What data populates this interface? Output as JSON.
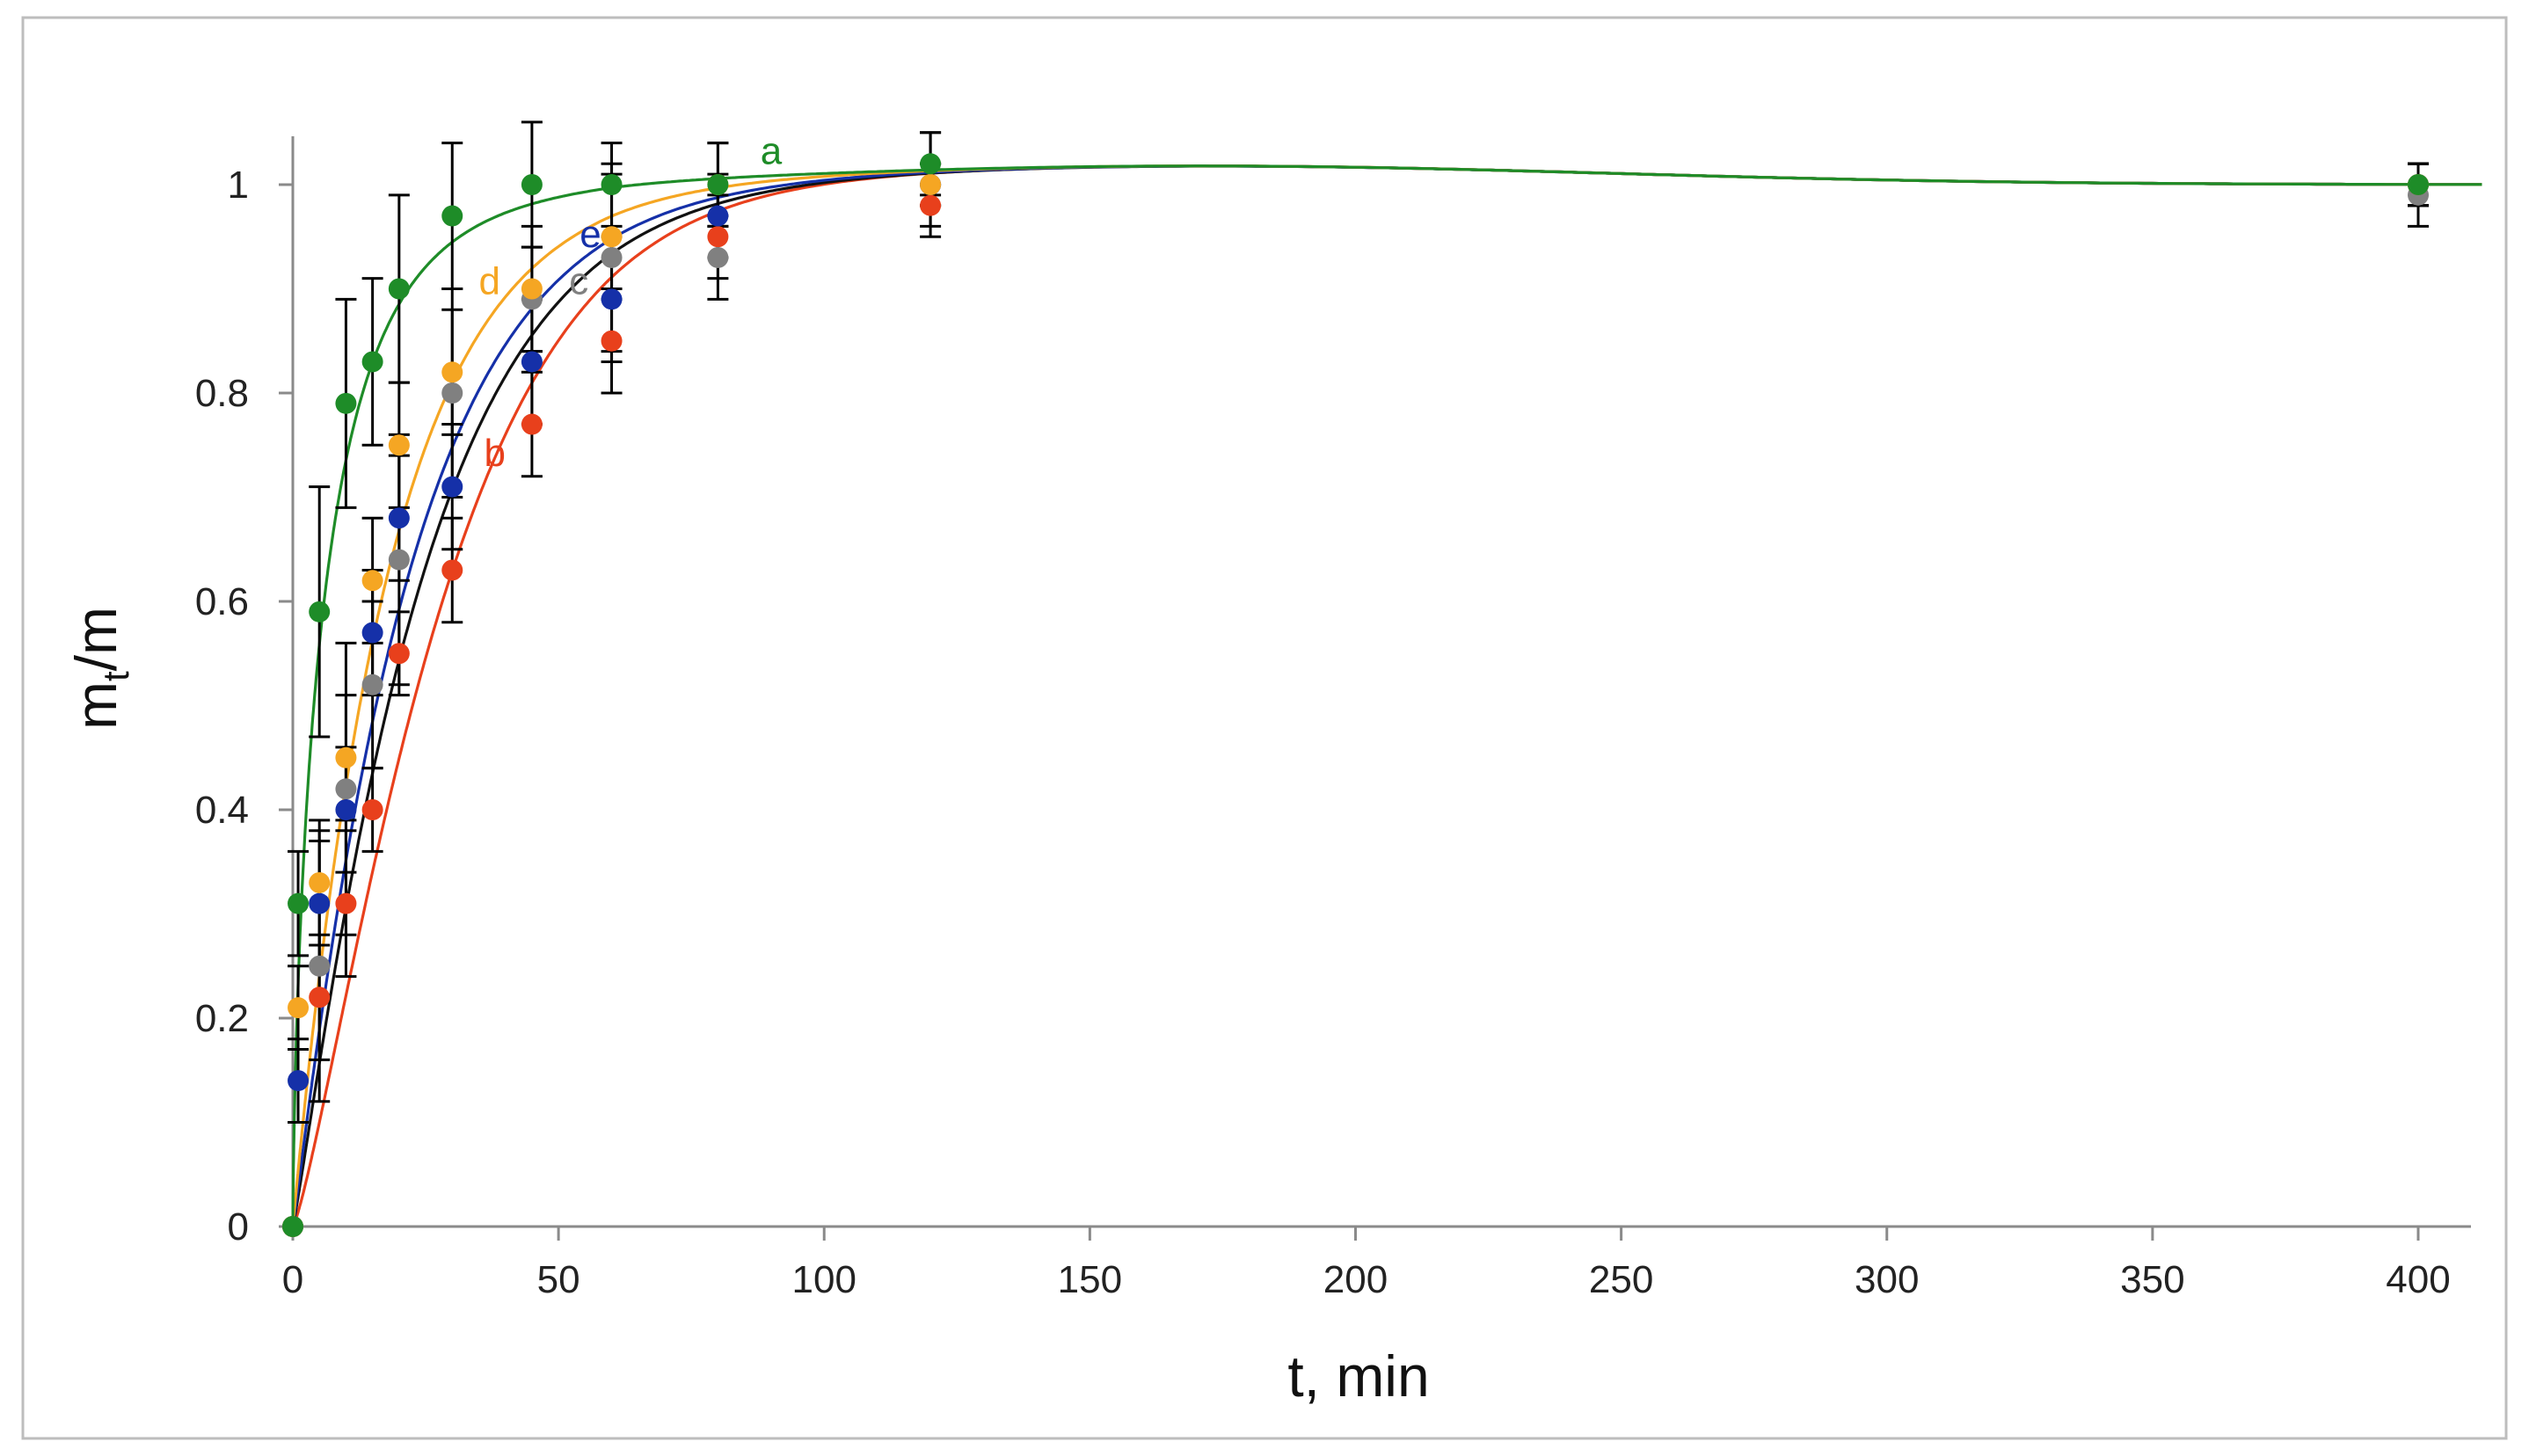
{
  "chart_data": {
    "type": "scatter",
    "xlabel": "t, min",
    "ylabel_main": "m",
    "ylabel_sub": "t",
    "ylabel_tail": "/m",
    "xlim": [
      0,
      400
    ],
    "ylim": [
      0,
      1
    ],
    "xticks": [
      "0",
      "50",
      "100",
      "150",
      "200",
      "250",
      "300",
      "350",
      "400"
    ],
    "yticks": [
      "0",
      "0.2",
      "0.4",
      "0.6",
      "0.8",
      "1"
    ],
    "grid": false,
    "series": [
      {
        "name": "b",
        "color": "#e8401c",
        "label_at": [
          36,
          0.73
        ],
        "x": [
          0,
          5,
          10,
          15,
          20,
          30,
          45,
          60,
          80,
          120,
          400
        ],
        "y": [
          0,
          0.22,
          0.31,
          0.4,
          0.55,
          0.63,
          0.77,
          0.85,
          0.95,
          0.98,
          1.0
        ],
        "err": [
          0,
          0.06,
          0.07,
          0.04,
          0.04,
          0.05,
          0.05,
          0.05,
          0.04,
          0.02,
          0.02
        ]
      },
      {
        "name": "c",
        "color": "#808080",
        "label_at": [
          52,
          0.895
        ],
        "x": [
          0,
          5,
          10,
          15,
          20,
          30,
          45,
          60,
          80,
          120,
          400
        ],
        "y": [
          0,
          0.25,
          0.42,
          0.52,
          0.64,
          0.8,
          0.89,
          0.93,
          0.93,
          1.0,
          0.99
        ],
        "err": [
          0,
          0.13,
          0.14,
          0.08,
          0.12,
          0.1,
          0.05,
          0.09,
          0.04,
          0.05,
          0.03
        ]
      },
      {
        "name": "e",
        "color": "#1530a8",
        "label_at": [
          54,
          0.94
        ],
        "x": [
          0,
          1,
          5,
          10,
          15,
          20,
          30,
          45,
          60,
          80,
          120,
          400
        ],
        "y": [
          0,
          0.14,
          0.31,
          0.4,
          0.57,
          0.68,
          0.71,
          0.83,
          0.89,
          0.97,
          1.0,
          1.0
        ],
        "err": [
          0,
          0.04,
          0.06,
          0.06,
          0.06,
          0.06,
          0.06,
          0.06,
          0.06,
          0.04,
          0.02,
          0.02
        ]
      },
      {
        "name": "d",
        "color": "#f5a623",
        "label_at": [
          35,
          0.895
        ],
        "x": [
          0,
          1,
          5,
          10,
          15,
          20,
          30,
          45,
          60,
          80,
          120,
          400
        ],
        "y": [
          0,
          0.21,
          0.33,
          0.45,
          0.62,
          0.75,
          0.82,
          0.9,
          0.95,
          1.0,
          1.0,
          1.0
        ],
        "err": [
          0,
          0.04,
          0.06,
          0.06,
          0.06,
          0.06,
          0.06,
          0.06,
          0.06,
          0.04,
          0.02,
          0.02
        ]
      },
      {
        "name": "a",
        "color": "#1e8c28",
        "label_at": [
          88,
          1.02
        ],
        "x": [
          0,
          1,
          5,
          10,
          15,
          20,
          30,
          45,
          60,
          80,
          120,
          400
        ],
        "y": [
          0,
          0.31,
          0.59,
          0.79,
          0.83,
          0.9,
          0.97,
          1.0,
          1.0,
          1.0,
          1.02,
          1.0
        ],
        "err": [
          0,
          0.05,
          0.12,
          0.1,
          0.08,
          0.09,
          0.07,
          0.06,
          0.04,
          0.04,
          0.03,
          0.02
        ]
      }
    ],
    "fits": [
      {
        "name": "b",
        "color": "#e8401c",
        "k": 0.033,
        "n": 1.25
      },
      {
        "name": "c",
        "color": "#111111",
        "k": 0.04,
        "n": 1.1
      },
      {
        "name": "e",
        "color": "#1530a8",
        "k": 0.045,
        "n": 1.05
      },
      {
        "name": "d",
        "color": "#f5a623",
        "k": 0.055,
        "n": 1.0
      },
      {
        "name": "a",
        "color": "#1e8c28",
        "k": 0.15,
        "n": 0.7
      }
    ]
  }
}
